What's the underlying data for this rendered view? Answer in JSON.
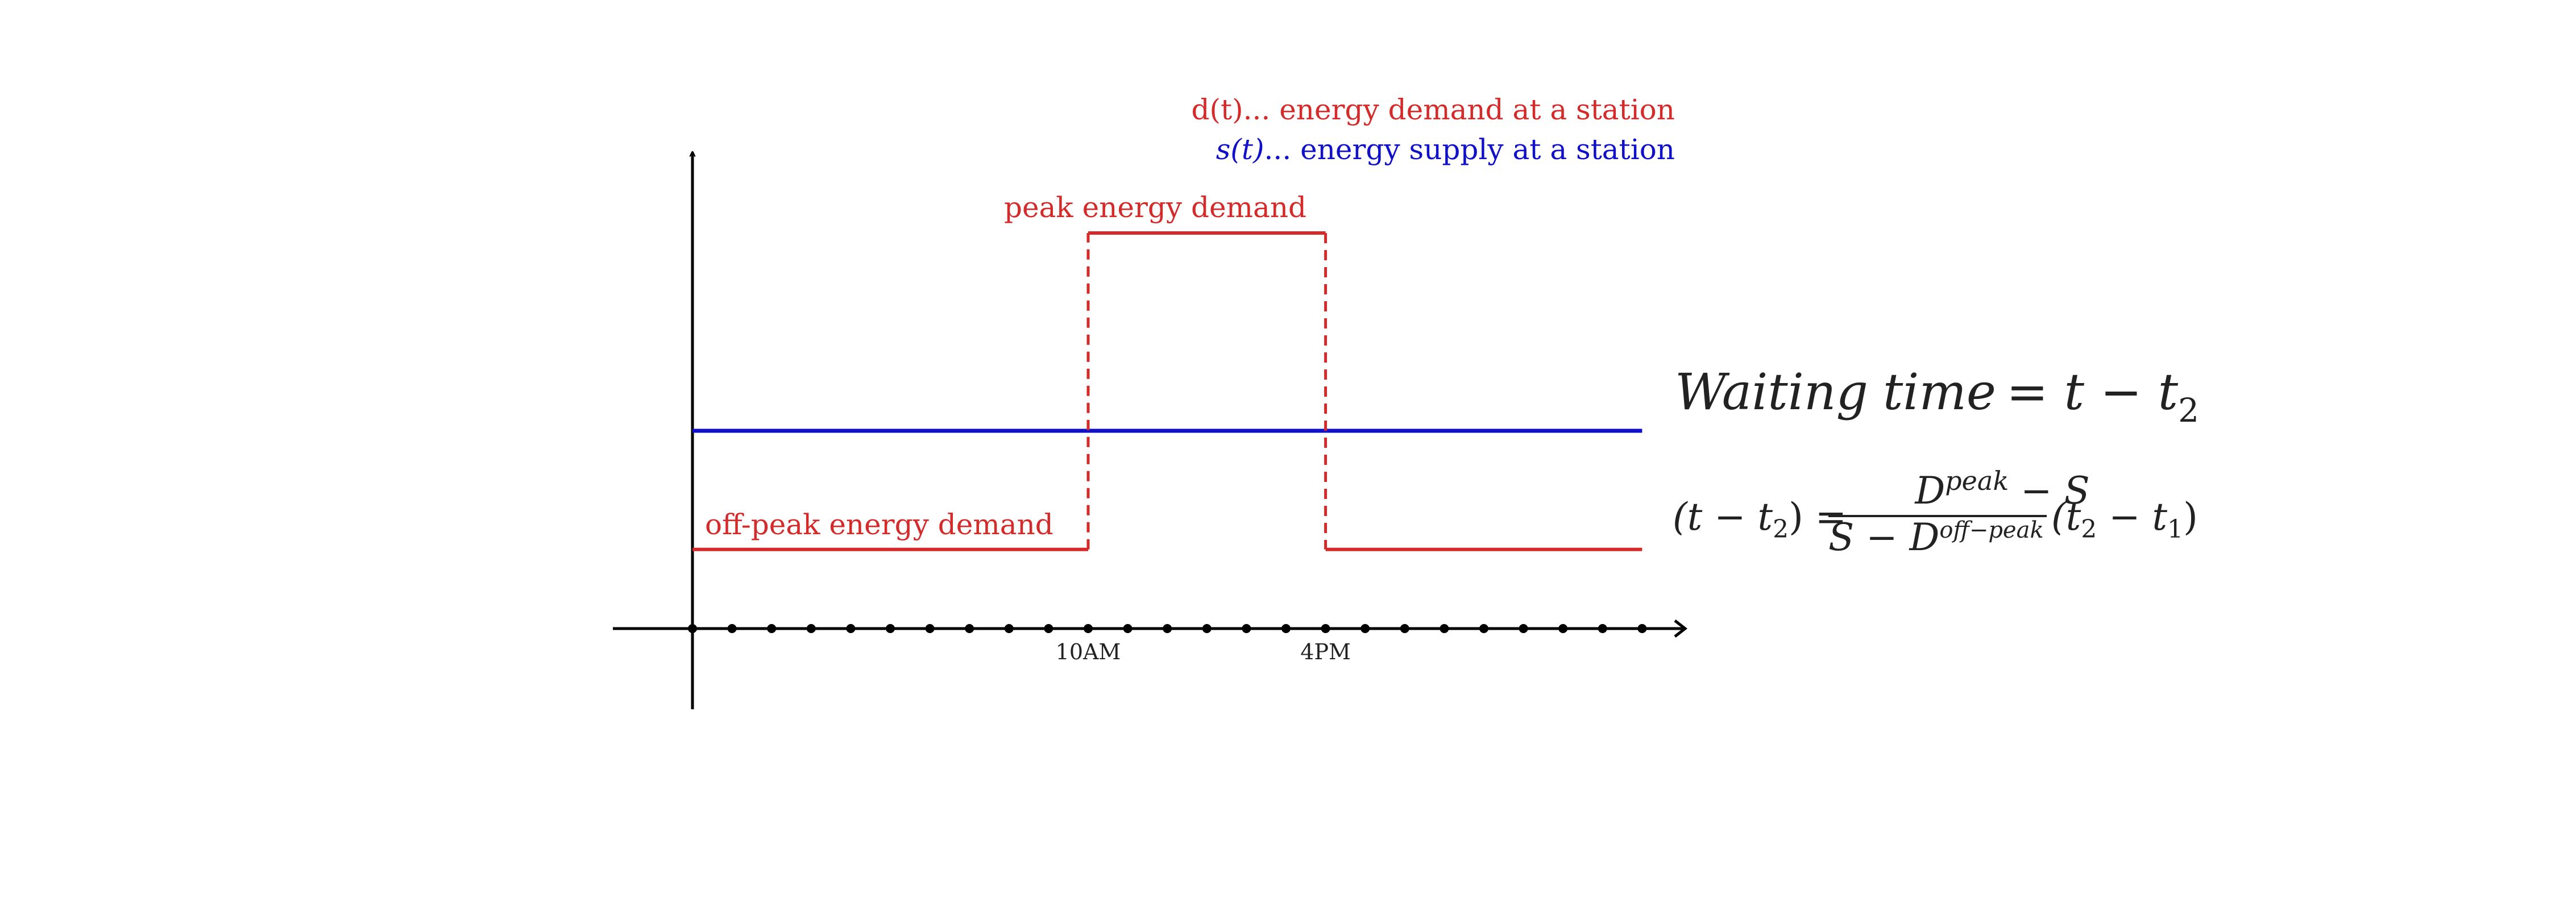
{
  "legend": {
    "demand": "d(t)... energy demand at a station",
    "supply_var": "s(t)",
    "supply_rest": "... energy supply at a station"
  },
  "labels": {
    "peak": "peak energy demand",
    "off_peak": "off-peak energy demand"
  },
  "ticks": {
    "t1": "10AM",
    "t2": "4PM"
  },
  "equation1": {
    "lhs_word1": "Waiting",
    "lhs_word2": "time",
    "rhs": "= t − t",
    "sub": "2"
  },
  "equation2": {
    "lhs": "(t − t",
    "lhs_sub": "2",
    "lhs_close": ") =",
    "num_var": "D",
    "num_sup": "peak",
    "num_rest": " − S",
    "den_left": "S − D",
    "den_sup": "off−peak",
    "tail": "(t",
    "tail_sub1": "2",
    "tail_mid": " − t",
    "tail_sub2": "1",
    "tail_close": ")"
  },
  "colors": {
    "demand": "#d42a2a",
    "supply": "#1010c8",
    "axis": "#000000",
    "text": "#222222"
  },
  "diagram": {
    "x_ticks": 25,
    "labeled_ticks": [
      10,
      16
    ],
    "off_peak_level": 2,
    "supply_level": 5,
    "peak_level": 10,
    "peak_start": 10,
    "peak_end": 16
  }
}
